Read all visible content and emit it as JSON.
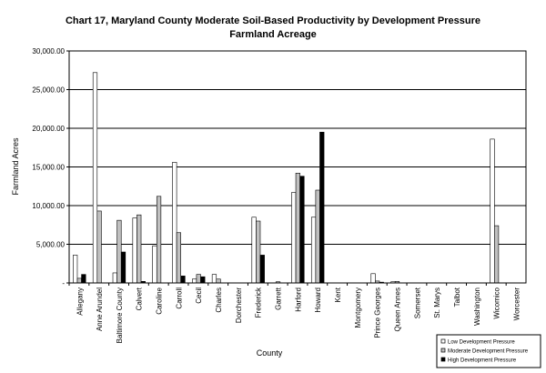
{
  "chart_data": {
    "type": "bar",
    "title": "Chart 17, Maryland County Moderate Soil-Based Productivity by Development Pressure",
    "subtitle": "Farmland Acreage",
    "xlabel": "County",
    "ylabel": "Farmland Acres",
    "ylim": [
      0,
      30000
    ],
    "yticks": [
      0,
      5000,
      10000,
      15000,
      20000,
      25000,
      30000
    ],
    "ytick_labels": [
      "-",
      "5,000.00",
      "10,000.00",
      "15,000.00",
      "20,000.00",
      "25,000.00",
      "30,000.00"
    ],
    "grid": true,
    "legend_position": "bottom-right",
    "categories": [
      "Allegany",
      "Anne Arundel",
      "Baltimore County",
      "Calvert",
      "Caroline",
      "Carroll",
      "Cecil",
      "Charles",
      "Dorchester",
      "Frederick",
      "Garrett",
      "Harford",
      "Howard",
      "Kent",
      "Montgomery",
      "Prince Georges",
      "Queen Annes",
      "Somerset",
      "St. Marys",
      "Talbot",
      "Washington",
      "Wicomico",
      "Worcester"
    ],
    "series": [
      {
        "name": "Low Development Pressure",
        "color": "#ffffff",
        "values": [
          3600,
          27200,
          1300,
          8400,
          4800,
          15600,
          500,
          1100,
          0,
          8500,
          0,
          11700,
          8500,
          0,
          0,
          1200,
          150,
          0,
          0,
          0,
          0,
          18600,
          0
        ]
      },
      {
        "name": "Moderate Development Pressure",
        "color": "#c0c0c0",
        "values": [
          600,
          9300,
          8100,
          8800,
          11200,
          6500,
          1100,
          500,
          0,
          8000,
          150,
          14200,
          12000,
          0,
          0,
          250,
          200,
          0,
          0,
          0,
          0,
          7400,
          0
        ]
      },
      {
        "name": "High Development Pressure",
        "color": "#000000",
        "values": [
          1100,
          0,
          4000,
          200,
          0,
          900,
          800,
          0,
          0,
          3600,
          0,
          13800,
          19500,
          0,
          0,
          100,
          0,
          0,
          0,
          0,
          0,
          0,
          0
        ]
      }
    ]
  }
}
